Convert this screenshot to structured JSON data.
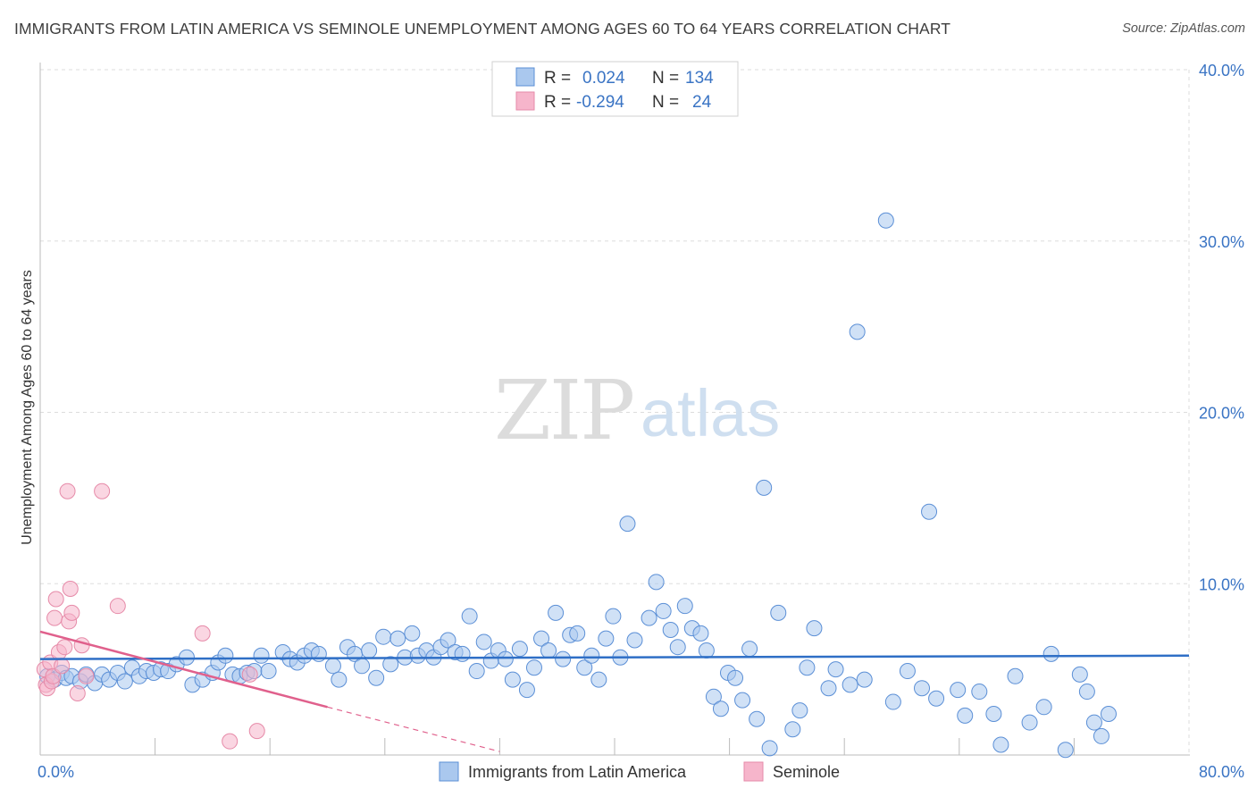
{
  "header": {
    "title": "IMMIGRANTS FROM LATIN AMERICA VS SEMINOLE UNEMPLOYMENT AMONG AGES 60 TO 64 YEARS CORRELATION CHART",
    "source": "Source: ZipAtlas.com"
  },
  "watermark": {
    "zip": "ZIP",
    "atlas": "atlas"
  },
  "stats": [
    {
      "r_label": "R =",
      "r_value": "0.024",
      "n_label": "N =",
      "n_value": "134"
    },
    {
      "r_label": "R =",
      "r_value": "-0.294",
      "n_label": "N =",
      "n_value": "24"
    }
  ],
  "colors": {
    "blue_fill": "#aac8ee",
    "blue_stroke": "#5b8fd6",
    "blue_line": "#2f6fc6",
    "pink_fill": "#f6b5cb",
    "pink_stroke": "#e68aa8",
    "pink_line": "#e0608c",
    "tick_text": "#3a74c4",
    "grid": "#dddddd"
  },
  "chart_data": {
    "type": "scatter",
    "title": "IMMIGRANTS FROM LATIN AMERICA VS SEMINOLE UNEMPLOYMENT AMONG AGES 60 TO 64 YEARS CORRELATION CHART",
    "xlabel": "",
    "ylabel": "Unemployment Among Ages 60 to 64 years",
    "xlim": [
      0,
      80
    ],
    "ylim": [
      0,
      40
    ],
    "x_tick_labels": [
      "0.0%",
      "80.0%"
    ],
    "y_tick_labels": [
      "10.0%",
      "20.0%",
      "30.0%",
      "40.0%"
    ],
    "y_ticks": [
      10,
      20,
      30,
      40
    ],
    "x_minor_ticks": [
      8,
      16,
      24,
      32,
      40,
      48,
      56,
      64,
      72
    ],
    "grid": "horizontal dashed",
    "legend_position": "bottom-center",
    "series": [
      {
        "name": "Immigrants from Latin America",
        "color": "blue",
        "trend": {
          "x": [
            0,
            80
          ],
          "y": [
            5.6,
            5.8
          ]
        },
        "points": [
          [
            0.5,
            4.6
          ],
          [
            1.0,
            4.4
          ],
          [
            1.5,
            4.8
          ],
          [
            1.8,
            4.5
          ],
          [
            2.2,
            4.6
          ],
          [
            2.8,
            4.3
          ],
          [
            3.2,
            4.7
          ],
          [
            3.8,
            4.2
          ],
          [
            4.3,
            4.7
          ],
          [
            4.8,
            4.4
          ],
          [
            5.4,
            4.8
          ],
          [
            5.9,
            4.3
          ],
          [
            6.4,
            5.1
          ],
          [
            6.9,
            4.6
          ],
          [
            7.4,
            4.9
          ],
          [
            7.9,
            4.8
          ],
          [
            8.4,
            5.0
          ],
          [
            8.9,
            4.9
          ],
          [
            9.5,
            5.3
          ],
          [
            10.2,
            5.7
          ],
          [
            10.6,
            4.1
          ],
          [
            11.3,
            4.4
          ],
          [
            12.0,
            4.8
          ],
          [
            12.4,
            5.4
          ],
          [
            12.9,
            5.8
          ],
          [
            13.4,
            4.7
          ],
          [
            13.9,
            4.6
          ],
          [
            14.4,
            4.8
          ],
          [
            14.9,
            4.9
          ],
          [
            15.4,
            5.8
          ],
          [
            15.9,
            4.9
          ],
          [
            16.9,
            6.0
          ],
          [
            17.4,
            5.6
          ],
          [
            17.9,
            5.4
          ],
          [
            18.4,
            5.8
          ],
          [
            18.9,
            6.1
          ],
          [
            19.4,
            5.9
          ],
          [
            20.4,
            5.2
          ],
          [
            20.8,
            4.4
          ],
          [
            21.4,
            6.3
          ],
          [
            21.9,
            5.9
          ],
          [
            22.4,
            5.2
          ],
          [
            22.9,
            6.1
          ],
          [
            23.4,
            4.5
          ],
          [
            23.9,
            6.9
          ],
          [
            24.4,
            5.3
          ],
          [
            24.9,
            6.8
          ],
          [
            25.4,
            5.7
          ],
          [
            25.9,
            7.1
          ],
          [
            26.3,
            5.8
          ],
          [
            26.9,
            6.1
          ],
          [
            27.4,
            5.7
          ],
          [
            27.9,
            6.3
          ],
          [
            28.4,
            6.7
          ],
          [
            28.9,
            6.0
          ],
          [
            29.4,
            5.9
          ],
          [
            29.9,
            8.1
          ],
          [
            30.4,
            4.9
          ],
          [
            30.9,
            6.6
          ],
          [
            31.4,
            5.5
          ],
          [
            31.9,
            6.1
          ],
          [
            32.4,
            5.6
          ],
          [
            32.9,
            4.4
          ],
          [
            33.4,
            6.2
          ],
          [
            33.9,
            3.8
          ],
          [
            34.4,
            5.1
          ],
          [
            34.9,
            6.8
          ],
          [
            35.4,
            6.1
          ],
          [
            35.9,
            8.3
          ],
          [
            36.4,
            5.6
          ],
          [
            36.9,
            7.0
          ],
          [
            37.4,
            7.1
          ],
          [
            37.9,
            5.1
          ],
          [
            38.4,
            5.8
          ],
          [
            38.9,
            4.4
          ],
          [
            39.4,
            6.8
          ],
          [
            39.9,
            8.1
          ],
          [
            40.4,
            5.7
          ],
          [
            40.9,
            13.5
          ],
          [
            41.4,
            6.7
          ],
          [
            42.4,
            8.0
          ],
          [
            42.9,
            10.1
          ],
          [
            43.4,
            8.4
          ],
          [
            43.9,
            7.3
          ],
          [
            44.4,
            6.3
          ],
          [
            44.9,
            8.7
          ],
          [
            45.4,
            7.4
          ],
          [
            46.0,
            7.1
          ],
          [
            46.4,
            6.1
          ],
          [
            46.9,
            3.4
          ],
          [
            47.4,
            2.7
          ],
          [
            47.9,
            4.8
          ],
          [
            48.4,
            4.5
          ],
          [
            48.9,
            3.2
          ],
          [
            49.4,
            6.2
          ],
          [
            49.9,
            2.1
          ],
          [
            50.4,
            15.6
          ],
          [
            50.8,
            0.4
          ],
          [
            51.4,
            8.3
          ],
          [
            52.4,
            1.5
          ],
          [
            52.9,
            2.6
          ],
          [
            53.4,
            5.1
          ],
          [
            53.9,
            7.4
          ],
          [
            54.9,
            3.9
          ],
          [
            55.4,
            5.0
          ],
          [
            56.4,
            4.1
          ],
          [
            56.9,
            24.7
          ],
          [
            57.4,
            4.4
          ],
          [
            58.9,
            31.2
          ],
          [
            59.4,
            3.1
          ],
          [
            60.4,
            4.9
          ],
          [
            61.4,
            3.9
          ],
          [
            61.9,
            14.2
          ],
          [
            62.4,
            3.3
          ],
          [
            63.9,
            3.8
          ],
          [
            64.4,
            2.3
          ],
          [
            65.4,
            3.7
          ],
          [
            66.4,
            2.4
          ],
          [
            66.9,
            0.6
          ],
          [
            67.9,
            4.6
          ],
          [
            68.9,
            1.9
          ],
          [
            69.9,
            2.8
          ],
          [
            70.4,
            5.9
          ],
          [
            71.4,
            0.3
          ],
          [
            72.4,
            4.7
          ],
          [
            72.9,
            3.7
          ],
          [
            73.4,
            1.9
          ],
          [
            73.9,
            1.1
          ],
          [
            74.4,
            2.4
          ]
        ]
      },
      {
        "name": "Seminole",
        "color": "pink",
        "trend": {
          "x": [
            0,
            20
          ],
          "y": [
            7.2,
            2.8
          ]
        },
        "trend_dashed": {
          "x": [
            20,
            32
          ],
          "y": [
            2.8,
            0.2
          ]
        },
        "points": [
          [
            0.3,
            5.0
          ],
          [
            0.4,
            4.1
          ],
          [
            0.5,
            3.9
          ],
          [
            0.7,
            5.4
          ],
          [
            0.8,
            4.3
          ],
          [
            0.9,
            4.6
          ],
          [
            1.0,
            8.0
          ],
          [
            1.1,
            9.1
          ],
          [
            1.3,
            6.0
          ],
          [
            1.5,
            5.2
          ],
          [
            1.7,
            6.3
          ],
          [
            1.9,
            15.4
          ],
          [
            2.0,
            7.8
          ],
          [
            2.1,
            9.7
          ],
          [
            2.2,
            8.3
          ],
          [
            2.6,
            3.6
          ],
          [
            2.9,
            6.4
          ],
          [
            3.2,
            4.6
          ],
          [
            4.3,
            15.4
          ],
          [
            5.4,
            8.7
          ],
          [
            11.3,
            7.1
          ],
          [
            13.2,
            0.8
          ],
          [
            14.6,
            4.7
          ],
          [
            15.1,
            1.4
          ]
        ]
      }
    ]
  },
  "legend": {
    "items": [
      {
        "label": "Immigrants from Latin America",
        "color": "blue"
      },
      {
        "label": "Seminole",
        "color": "pink"
      }
    ]
  }
}
